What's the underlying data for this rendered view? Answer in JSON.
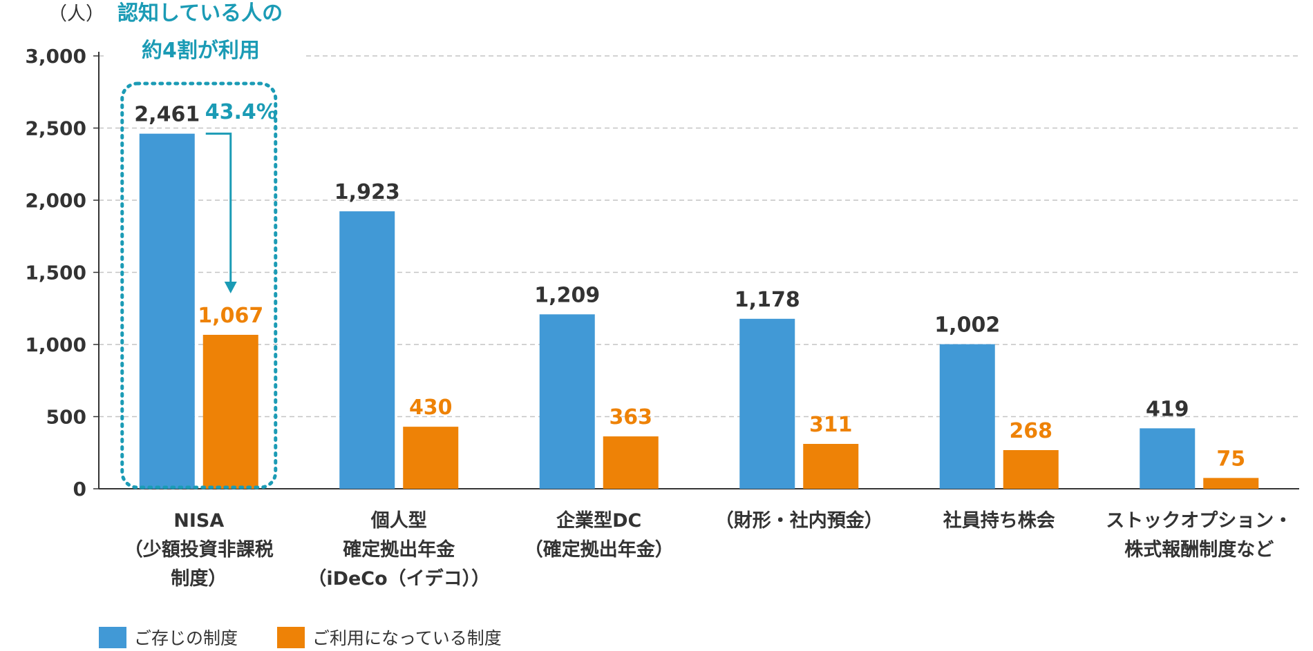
{
  "chart_data": {
    "type": "bar",
    "y_unit_label": "（人）",
    "ylim": [
      0,
      3000
    ],
    "yticks": [
      0,
      500,
      1000,
      1500,
      2000,
      2500,
      3000
    ],
    "ytick_labels": [
      "0",
      "500",
      "1,000",
      "1,500",
      "2,000",
      "2,500",
      "3,000"
    ],
    "grid": true,
    "categories": [
      [
        "NISA",
        "（少額投資非課税",
        "制度）"
      ],
      [
        "個人型",
        "確定拠出年金",
        "（iDeCo（イデコ））"
      ],
      [
        "企業型DC",
        "（確定拠出年金）"
      ],
      [
        "（財形・社内預金）"
      ],
      [
        "社員持ち株会"
      ],
      [
        "ストックオプション・",
        "株式報酬制度など"
      ]
    ],
    "series": [
      {
        "name": "ご存じの制度",
        "color": "#4199d6",
        "values": [
          2461,
          1923,
          1209,
          1178,
          1002,
          419
        ],
        "labels": [
          "2,461",
          "1,923",
          "1,209",
          "1,178",
          "1,002",
          "419"
        ],
        "label_color": "#333333"
      },
      {
        "name": "ご利用になっている制度",
        "color": "#ee8206",
        "values": [
          1067,
          430,
          363,
          311,
          268,
          75
        ],
        "labels": [
          "1,067",
          "430",
          "363",
          "311",
          "268",
          "75"
        ],
        "label_color": "#ee8206"
      }
    ],
    "legend_position": "bottom-left",
    "annotation": {
      "lines": [
        "認知している人の",
        "約4割が利用"
      ],
      "percent": "43.4%",
      "color": "#1b9bb5"
    }
  }
}
